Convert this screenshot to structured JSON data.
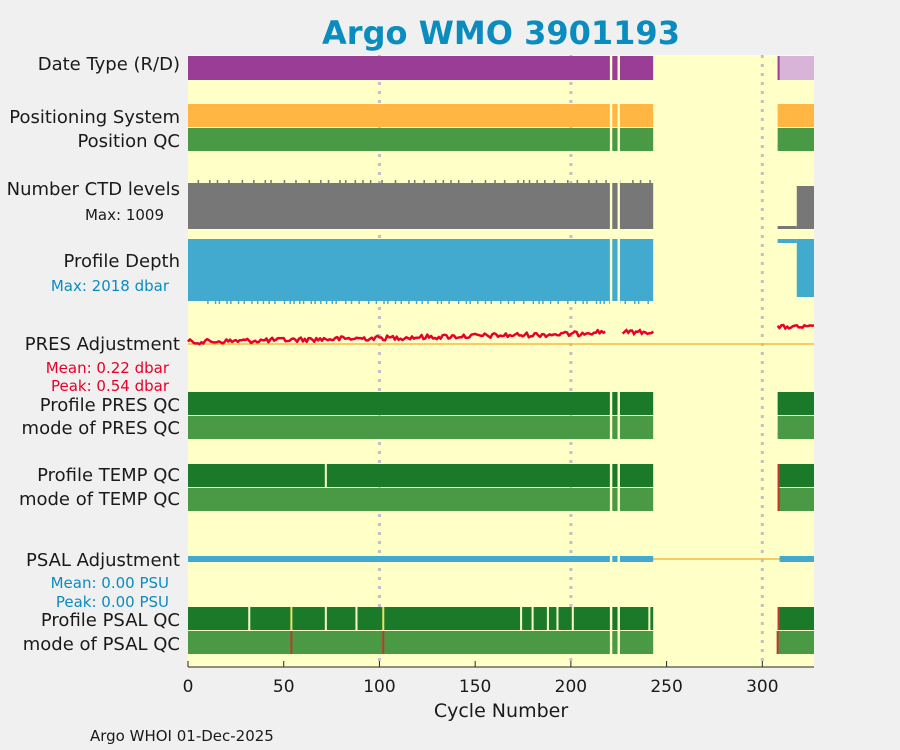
{
  "chart_data": {
    "type": "timeline",
    "title": "Argo WMO 3901193",
    "xlabel": "Cycle Number",
    "xlim": [
      0,
      327
    ],
    "xticks": [
      0,
      50,
      100,
      150,
      200,
      250,
      300
    ],
    "footer": "Argo WHOI 01-Dec-2025",
    "colors": {
      "title": "#0b8cbf",
      "plot_bg": "#ffffc8",
      "data_type": "#9a3d96",
      "data_type_late": "#d8b4d8",
      "positioning": "#ffb642",
      "qc_good": "#1a7a2a",
      "qc_mode": "#4a9a45",
      "ctd_levels": "#777777",
      "profile_depth": "#42aacf",
      "pres_adjust": "#e8002a",
      "psal_adjust": "#42aacf",
      "zero_line": "#f5b942",
      "grid": "#c0c0c8",
      "qc_flag_red": "#c0392b",
      "qc_flag_yellow": "#f0e060",
      "mean_peak_text_pres": "#e8002a",
      "mean_peak_text_psal": "#0b8cbf"
    },
    "data_range_early": [
      0,
      243
    ],
    "data_range_late": [
      308,
      327
    ],
    "gaps": [
      221,
      225
    ],
    "grid_cycles": [
      100,
      200,
      300
    ],
    "rows": {
      "data_type": {
        "label": "Date Type (R/D)"
      },
      "positioning": {
        "label": "Positioning System"
      },
      "position_qc": {
        "label": "Position QC"
      },
      "ctd_levels": {
        "label": "Number CTD levels",
        "max_label": "Max: 1009",
        "max": 1009
      },
      "profile_depth": {
        "label": "Profile Depth",
        "max_label": "Max: 2018 dbar",
        "max": 2018
      },
      "pres_adjust": {
        "label": "PRES Adjustment",
        "mean_label": "Mean: 0.22 dbar",
        "peak_label": "Peak: 0.54 dbar",
        "mean": 0.22,
        "peak": 0.54
      },
      "profile_pres_qc": {
        "label": "Profile PRES QC"
      },
      "mode_pres_qc": {
        "label": "mode of PRES QC"
      },
      "profile_temp_qc": {
        "label": "Profile TEMP QC",
        "marks": [
          72,
          221
        ]
      },
      "mode_temp_qc": {
        "label": "mode of TEMP QC"
      },
      "psal_adjust": {
        "label": "PSAL Adjustment",
        "mean_label": "Mean: 0.00 PSU",
        "peak_label": "Peak: 0.00 PSU",
        "mean": 0.0,
        "peak": 0.0
      },
      "profile_psal_qc": {
        "label": "Profile PSAL QC",
        "marks": [
          32,
          72,
          88,
          174,
          180,
          188,
          193,
          201,
          221,
          241
        ],
        "yellow_marks": [
          54,
          102
        ]
      },
      "mode_psal_qc": {
        "label": "mode of PSAL QC",
        "red_marks": [
          54,
          102,
          308
        ]
      }
    }
  }
}
